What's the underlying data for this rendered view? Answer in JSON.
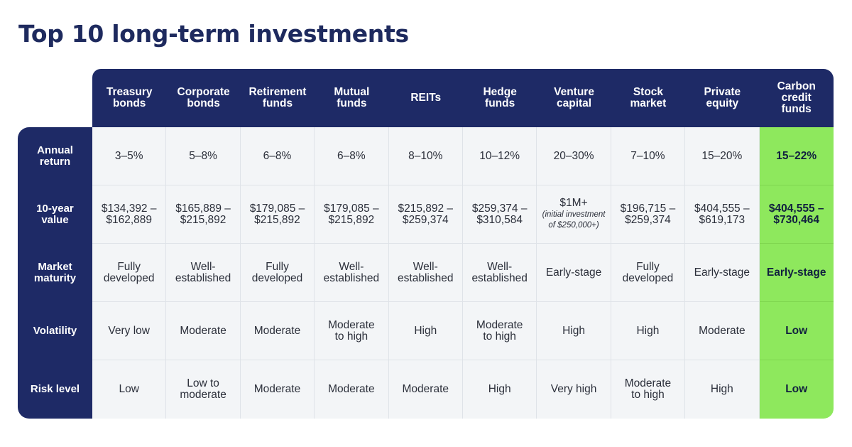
{
  "title": "Top 10 long-term investments",
  "columns": [
    "Treasury\nbonds",
    "Corporate\nbonds",
    "Retirement\nfunds",
    "Mutual\nfunds",
    "REITs",
    "Hedge\nfunds",
    "Venture\ncapital",
    "Stock\nmarket",
    "Private\nequity",
    "Carbon\ncredit\nfunds"
  ],
  "rows": [
    {
      "label": "Annual\nreturn",
      "cells": [
        "3–5%",
        "5–8%",
        "6–8%",
        "6–8%",
        "8–10%",
        "10–12%",
        "20–30%",
        "7–10%",
        "15–20%",
        "15–22%"
      ]
    },
    {
      "label": "10-year\nvalue",
      "cells": [
        "$134,392 –\n$162,889",
        "$165,889 –\n$215,892",
        "$179,085 –\n$215,892",
        "$179,085 –\n$215,892",
        "$215,892 –\n$259,374",
        "$259,374 –\n$310,584",
        "$1M+",
        "$196,715 –\n$259,374",
        "$404,555 –\n$619,173",
        "$404,555 –\n$730,464"
      ],
      "note": "(initial investment\nof $250,000+)"
    },
    {
      "label": "Market\nmaturity",
      "cells": [
        "Fully\ndeveloped",
        "Well-\nestablished",
        "Fully\ndeveloped",
        "Well-\nestablished",
        "Well-\nestablished",
        "Well-\nestablished",
        "Early-stage",
        "Fully\ndeveloped",
        "Early-stage",
        "Early-stage"
      ]
    },
    {
      "label": "Volatility",
      "cells": [
        "Very low",
        "Moderate",
        "Moderate",
        "Moderate\nto high",
        "High",
        "Moderate\nto high",
        "High",
        "High",
        "Moderate",
        "Low"
      ]
    },
    {
      "label": "Risk level",
      "cells": [
        "Low",
        "Low to\nmoderate",
        "Moderate",
        "Moderate",
        "Moderate",
        "High",
        "Very high",
        "Moderate\nto high",
        "High",
        "Low"
      ]
    }
  ],
  "colors": {
    "navy": "#1e2a66",
    "highlight": "#8ee85d",
    "cell": "#f3f5f7"
  }
}
